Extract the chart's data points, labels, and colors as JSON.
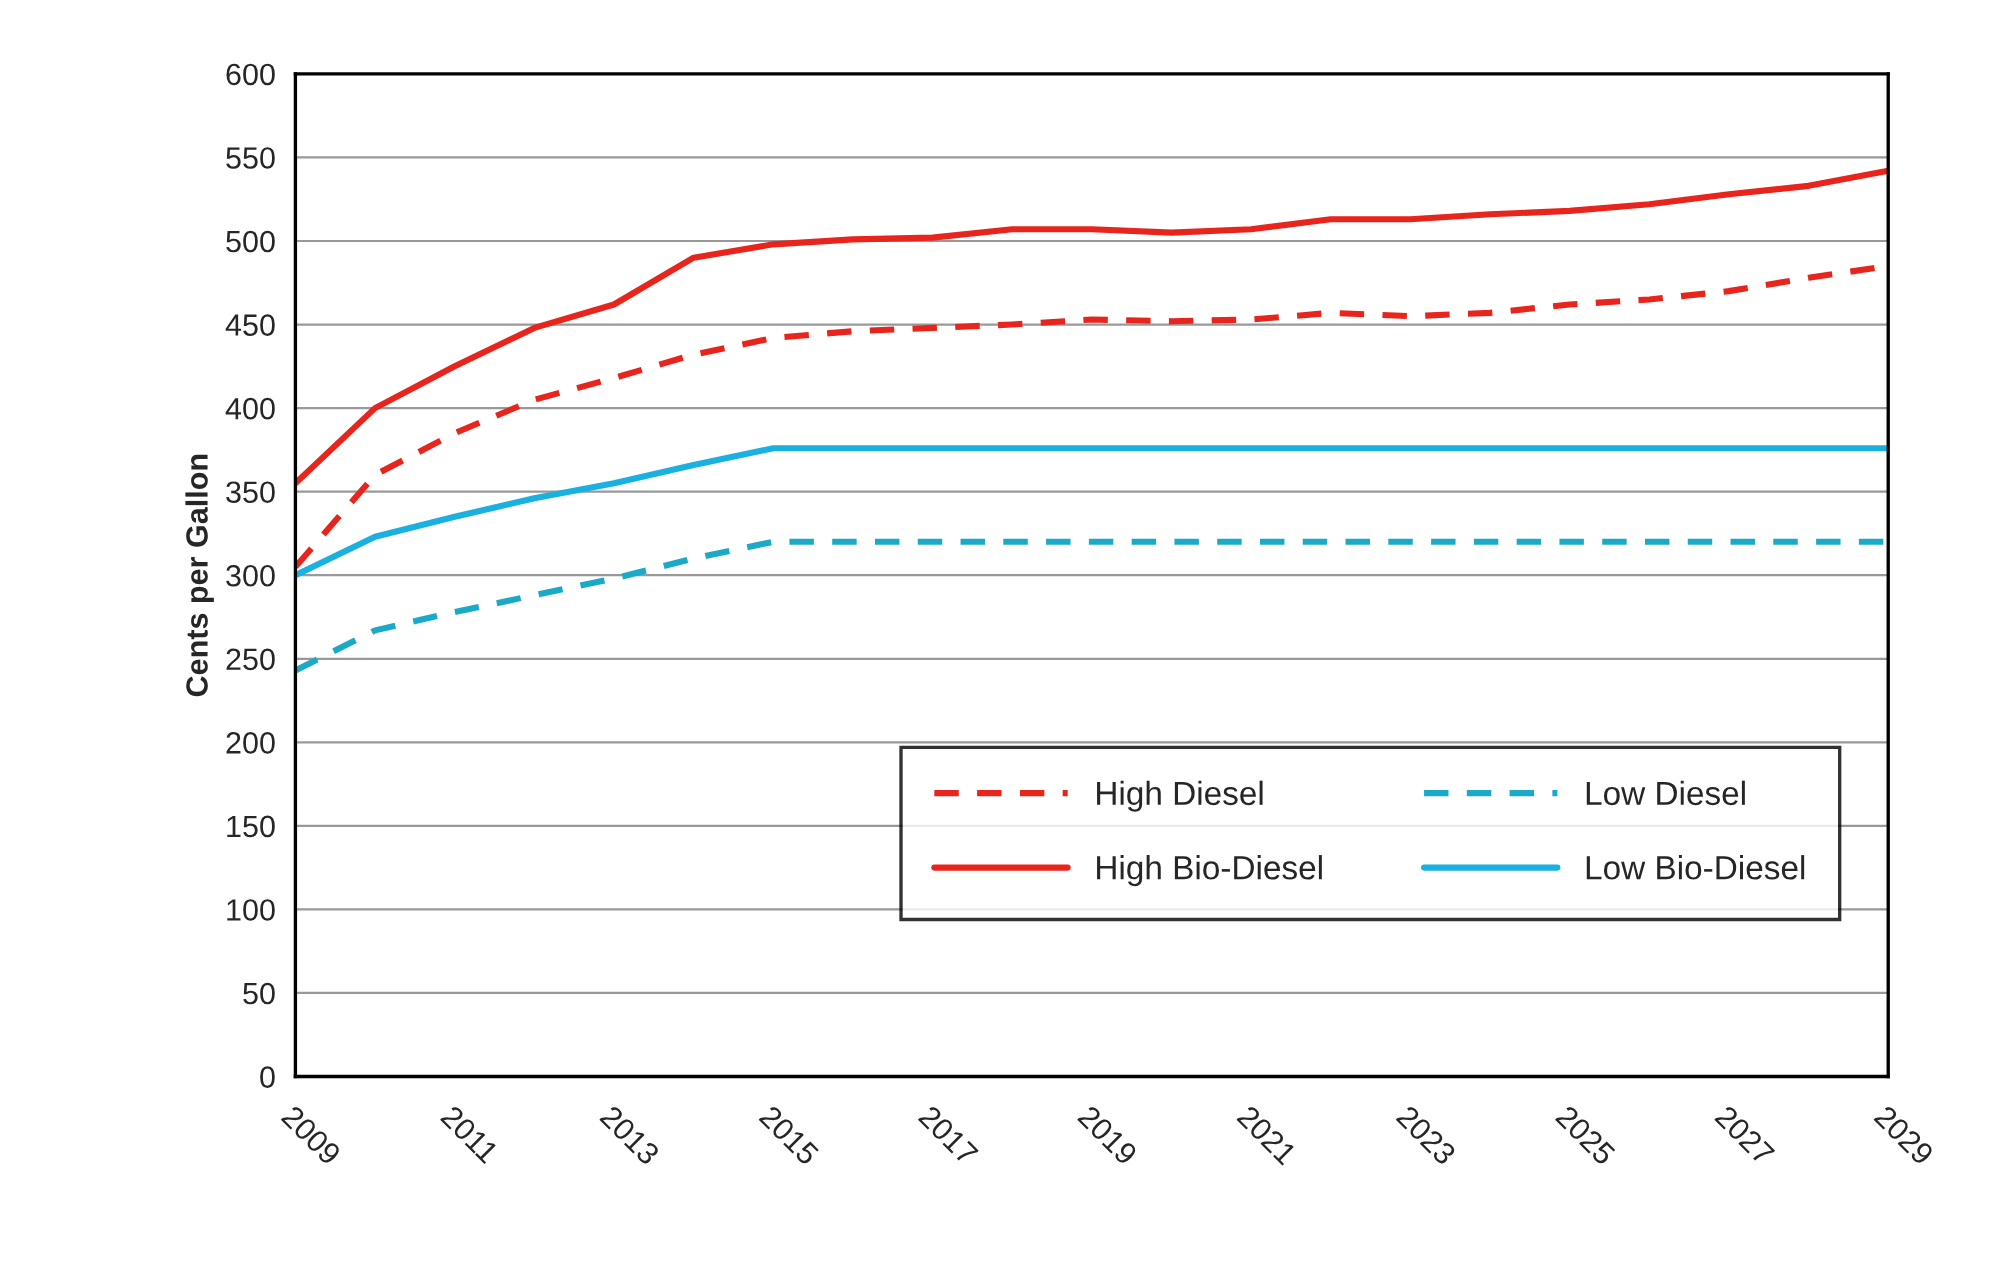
{
  "chart_data": {
    "type": "line",
    "ylabel": "Cents per Gallon",
    "x": [
      2009,
      2010,
      2011,
      2012,
      2013,
      2014,
      2015,
      2016,
      2017,
      2018,
      2019,
      2020,
      2021,
      2022,
      2023,
      2024,
      2025,
      2026,
      2027,
      2028,
      2029
    ],
    "series": [
      {
        "name": "High Diesel",
        "color": "#e8251d",
        "line_style": "dashed",
        "values": [
          305,
          360,
          385,
          405,
          418,
          432,
          442,
          446,
          448,
          450,
          453,
          452,
          453,
          457,
          455,
          457,
          462,
          465,
          470,
          478,
          485
        ]
      },
      {
        "name": "High Bio-Diesel",
        "color": "#e8251d",
        "line_style": "solid",
        "values": [
          355,
          400,
          425,
          448,
          462,
          490,
          498,
          501,
          502,
          507,
          507,
          505,
          507,
          513,
          513,
          516,
          518,
          522,
          528,
          533,
          542
        ]
      },
      {
        "name": "Low Diesel",
        "color": "#1aaac8",
        "line_style": "dashed",
        "values": [
          243,
          267,
          278,
          288,
          298,
          310,
          320,
          320,
          320,
          320,
          320,
          320,
          320,
          320,
          320,
          320,
          320,
          320,
          320,
          320,
          320
        ]
      },
      {
        "name": "Low Bio-Diesel",
        "color": "#1ab0e0",
        "line_style": "solid",
        "values": [
          300,
          323,
          335,
          346,
          355,
          366,
          376,
          376,
          376,
          376,
          376,
          376,
          376,
          376,
          376,
          376,
          376,
          376,
          376,
          376,
          376
        ]
      }
    ],
    "xlim": [
      2009,
      2029
    ],
    "xticks": [
      2009,
      2011,
      2013,
      2015,
      2017,
      2019,
      2021,
      2023,
      2025,
      2027,
      2029
    ],
    "ylim": [
      0,
      600
    ],
    "yticks": [
      0,
      50,
      100,
      150,
      200,
      250,
      300,
      350,
      400,
      450,
      500,
      550,
      600
    ],
    "grid": "y",
    "legend": "bottom right",
    "marker": "none"
  }
}
